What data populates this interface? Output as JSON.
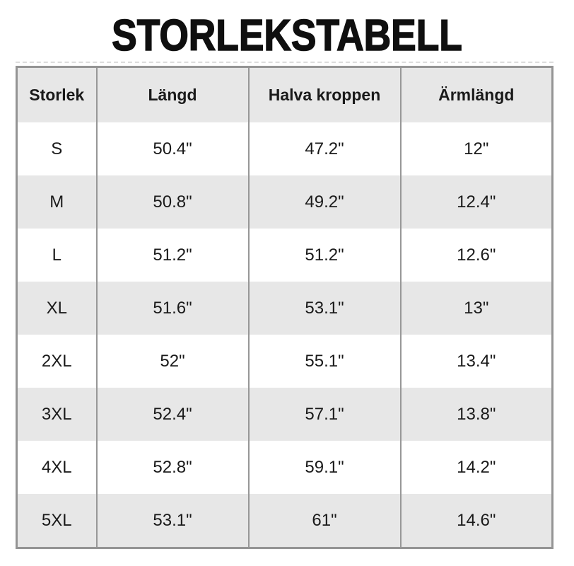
{
  "title": "STORLEKSTABELL",
  "chart_data": {
    "type": "table",
    "title": "STORLEKSTABELL",
    "columns": [
      "Storlek",
      "Längd",
      "Halva kroppen",
      "Ärmlängd"
    ],
    "rows": [
      [
        "S",
        "50.4\"",
        "47.2\"",
        "12\""
      ],
      [
        "M",
        "50.8\"",
        "49.2\"",
        "12.4\""
      ],
      [
        "L",
        "51.2\"",
        "51.2\"",
        "12.6\""
      ],
      [
        "XL",
        "51.6\"",
        "53.1\"",
        "13\""
      ],
      [
        "2XL",
        "52\"",
        "55.1\"",
        "13.4\""
      ],
      [
        "3XL",
        "52.4\"",
        "57.1\"",
        "13.8\""
      ],
      [
        "4XL",
        "52.8\"",
        "59.1\"",
        "14.2\""
      ],
      [
        "5XL",
        "53.1\"",
        "61\"",
        "14.6\""
      ]
    ],
    "layout": {
      "zebra_striping": true,
      "header_background": "#e7e7e7",
      "stripe_background": "#e7e7e7",
      "border_color": "#949494",
      "text_color": "#1a1a1a",
      "page_background": "#ffffff"
    }
  }
}
